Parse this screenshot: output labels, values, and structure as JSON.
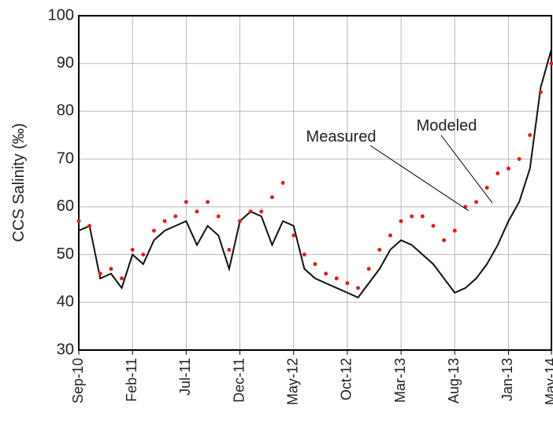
{
  "chart_data": {
    "type": "line",
    "y_label": "CCS Salinity (‰)",
    "categories": [
      "Sep-10",
      null,
      null,
      null,
      null,
      "Feb-11",
      null,
      null,
      null,
      null,
      "Jul-11",
      null,
      null,
      null,
      null,
      "Dec-11",
      null,
      null,
      null,
      null,
      "May-12",
      null,
      null,
      null,
      null,
      "Oct-12",
      null,
      null,
      null,
      null,
      "Mar-13",
      null,
      null,
      null,
      null,
      "Aug-13",
      null,
      null,
      null,
      null,
      "Jan-13",
      null,
      null,
      null,
      "May-14"
    ],
    "series": [
      {
        "name": "Modeled",
        "color": "#111111",
        "style": "line",
        "values": [
          55,
          56,
          45,
          46,
          43,
          50,
          48,
          53,
          55,
          56,
          57,
          52,
          56,
          54,
          47,
          57,
          59,
          58,
          52,
          57,
          56,
          47,
          45,
          44,
          43,
          42,
          41,
          44,
          47,
          51,
          53,
          52,
          50,
          48,
          45,
          42,
          43,
          45,
          48,
          52,
          57,
          61,
          68,
          85,
          93
        ]
      },
      {
        "name": "Measured",
        "color": "#e0201c",
        "style": "dots",
        "values": [
          57,
          56,
          46,
          47,
          45,
          51,
          50,
          55,
          57,
          58,
          61,
          59,
          61,
          58,
          51,
          57,
          59,
          59,
          62,
          65,
          54,
          50,
          48,
          46,
          45,
          44,
          43,
          47,
          51,
          54,
          57,
          58,
          58,
          56,
          53,
          55,
          60,
          61,
          64,
          67,
          68,
          70,
          75,
          84,
          90
        ]
      }
    ],
    "ylim": [
      30,
      100
    ],
    "yticks": [
      30,
      40,
      50,
      60,
      70,
      80,
      90,
      100
    ],
    "grid": true
  }
}
